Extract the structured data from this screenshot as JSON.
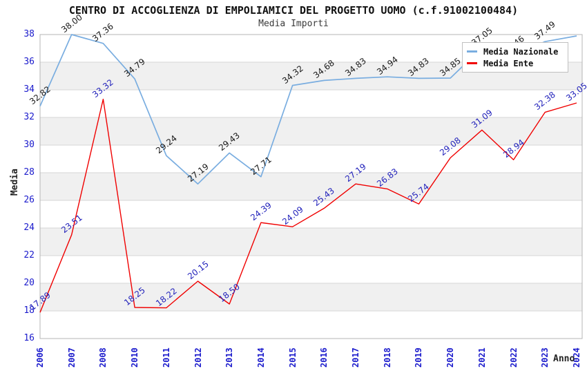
{
  "header": {
    "title": "CENTRO DI ACCOGLIENZA DI EMPOLIAMICI DEL PROGETTO UOMO (c.f.91002100484)",
    "subtitle": "Media Importi"
  },
  "chart_data": {
    "type": "line",
    "title": "CENTRO DI ACCOGLIENZA DI EMPOLIAMICI DEL PROGETTO UOMO (c.f.91002100484)",
    "subtitle": "Media Importi",
    "xlabel": "Anno",
    "ylabel": "Media",
    "ylim": [
      16,
      38
    ],
    "ytick_step": 2,
    "grid": "horizontal",
    "band_pattern": "alternating-gray",
    "legend_position": "top-right",
    "categories": [
      "2006",
      "2007",
      "2008",
      "2010",
      "2011",
      "2012",
      "2013",
      "2014",
      "2015",
      "2016",
      "2017",
      "2018",
      "2019",
      "2020",
      "2021",
      "2022",
      "2023",
      "2024"
    ],
    "series": [
      {
        "name": "Media Nazionale",
        "color": "#79ade0",
        "label_color": "#1a1a1a",
        "values": [
          32.82,
          38.0,
          37.36,
          34.79,
          29.24,
          27.19,
          29.43,
          27.71,
          34.32,
          34.68,
          34.83,
          34.94,
          34.83,
          34.85,
          37.05,
          36.46,
          37.49,
          37.9
        ],
        "hidden_label_indices": [
          17
        ]
      },
      {
        "name": "Media Ente",
        "color": "#f00000",
        "label_color": "#2222bb",
        "values": [
          17.89,
          23.51,
          33.32,
          18.25,
          18.22,
          20.15,
          18.5,
          24.39,
          24.09,
          25.43,
          27.19,
          26.83,
          25.74,
          29.08,
          31.09,
          28.94,
          32.38,
          33.05
        ],
        "hidden_label_indices": []
      }
    ],
    "colors": {
      "axis_tick": "#1a1acc",
      "band": "#f0f0f0",
      "gridline": "#d6d6d6",
      "border": "#b5b5b5"
    }
  }
}
